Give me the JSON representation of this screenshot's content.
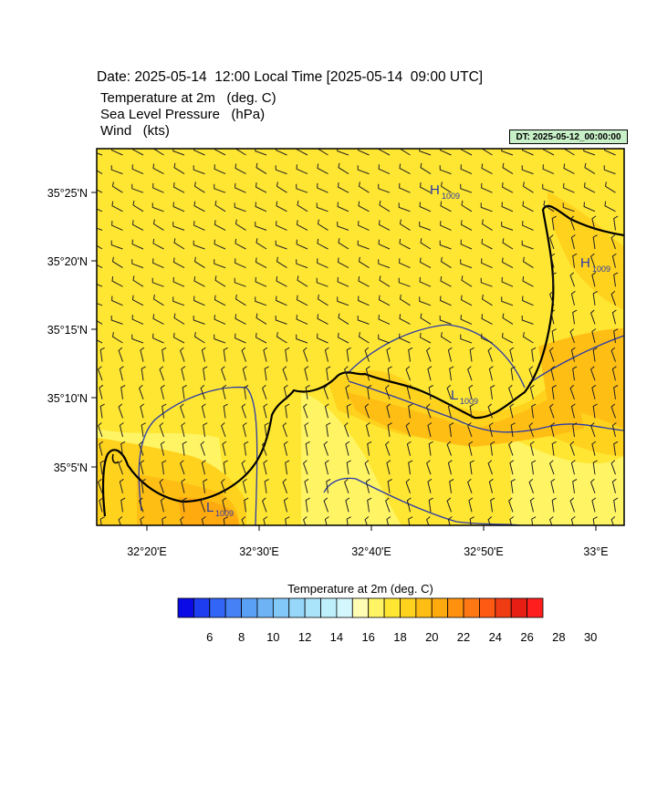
{
  "header": {
    "date_line": "Date: 2025-05-14  12:00 Local Time [2025-05-14  09:00 UTC]",
    "var_temperature": "Temperature at 2m   (deg. C)",
    "var_pressure": "Sea Level Pressure   (hPa)",
    "var_wind": "Wind   (kts)",
    "dt_label": "DT: 2025-05-12_00:00:00"
  },
  "map": {
    "lat_labels": [
      "35°25'N",
      "35°20'N",
      "35°15'N",
      "35°10'N",
      "35°5'N"
    ],
    "lon_labels": [
      "32°20'E",
      "32°30'E",
      "32°40'E",
      "32°50'E",
      "33°E"
    ],
    "pressure_markers": [
      {
        "letter": "H",
        "value": "1009"
      },
      {
        "letter": "H",
        "value": "1009"
      },
      {
        "letter": "L",
        "value": "1009"
      },
      {
        "letter": "L",
        "value": "1009"
      }
    ]
  },
  "colorbar": {
    "title": "Temperature at 2m  (deg. C)",
    "tick_labels": [
      "6",
      "8",
      "10",
      "12",
      "14",
      "16",
      "18",
      "20",
      "22",
      "24",
      "26",
      "28",
      "30"
    ],
    "colors": [
      "#0a0ae6",
      "#1e3cf0",
      "#3264f5",
      "#4682f5",
      "#5aa0f5",
      "#6eb4f5",
      "#82c8f8",
      "#96d7fa",
      "#aae4fb",
      "#bef0fc",
      "#d2f8fd",
      "#fffcb4",
      "#fff564",
      "#ffe632",
      "#ffd21e",
      "#ffbe14",
      "#ffaa0f",
      "#ff910f",
      "#ff7814",
      "#ff5a14",
      "#f03c14",
      "#e61e14",
      "#ff1e1e"
    ]
  }
}
